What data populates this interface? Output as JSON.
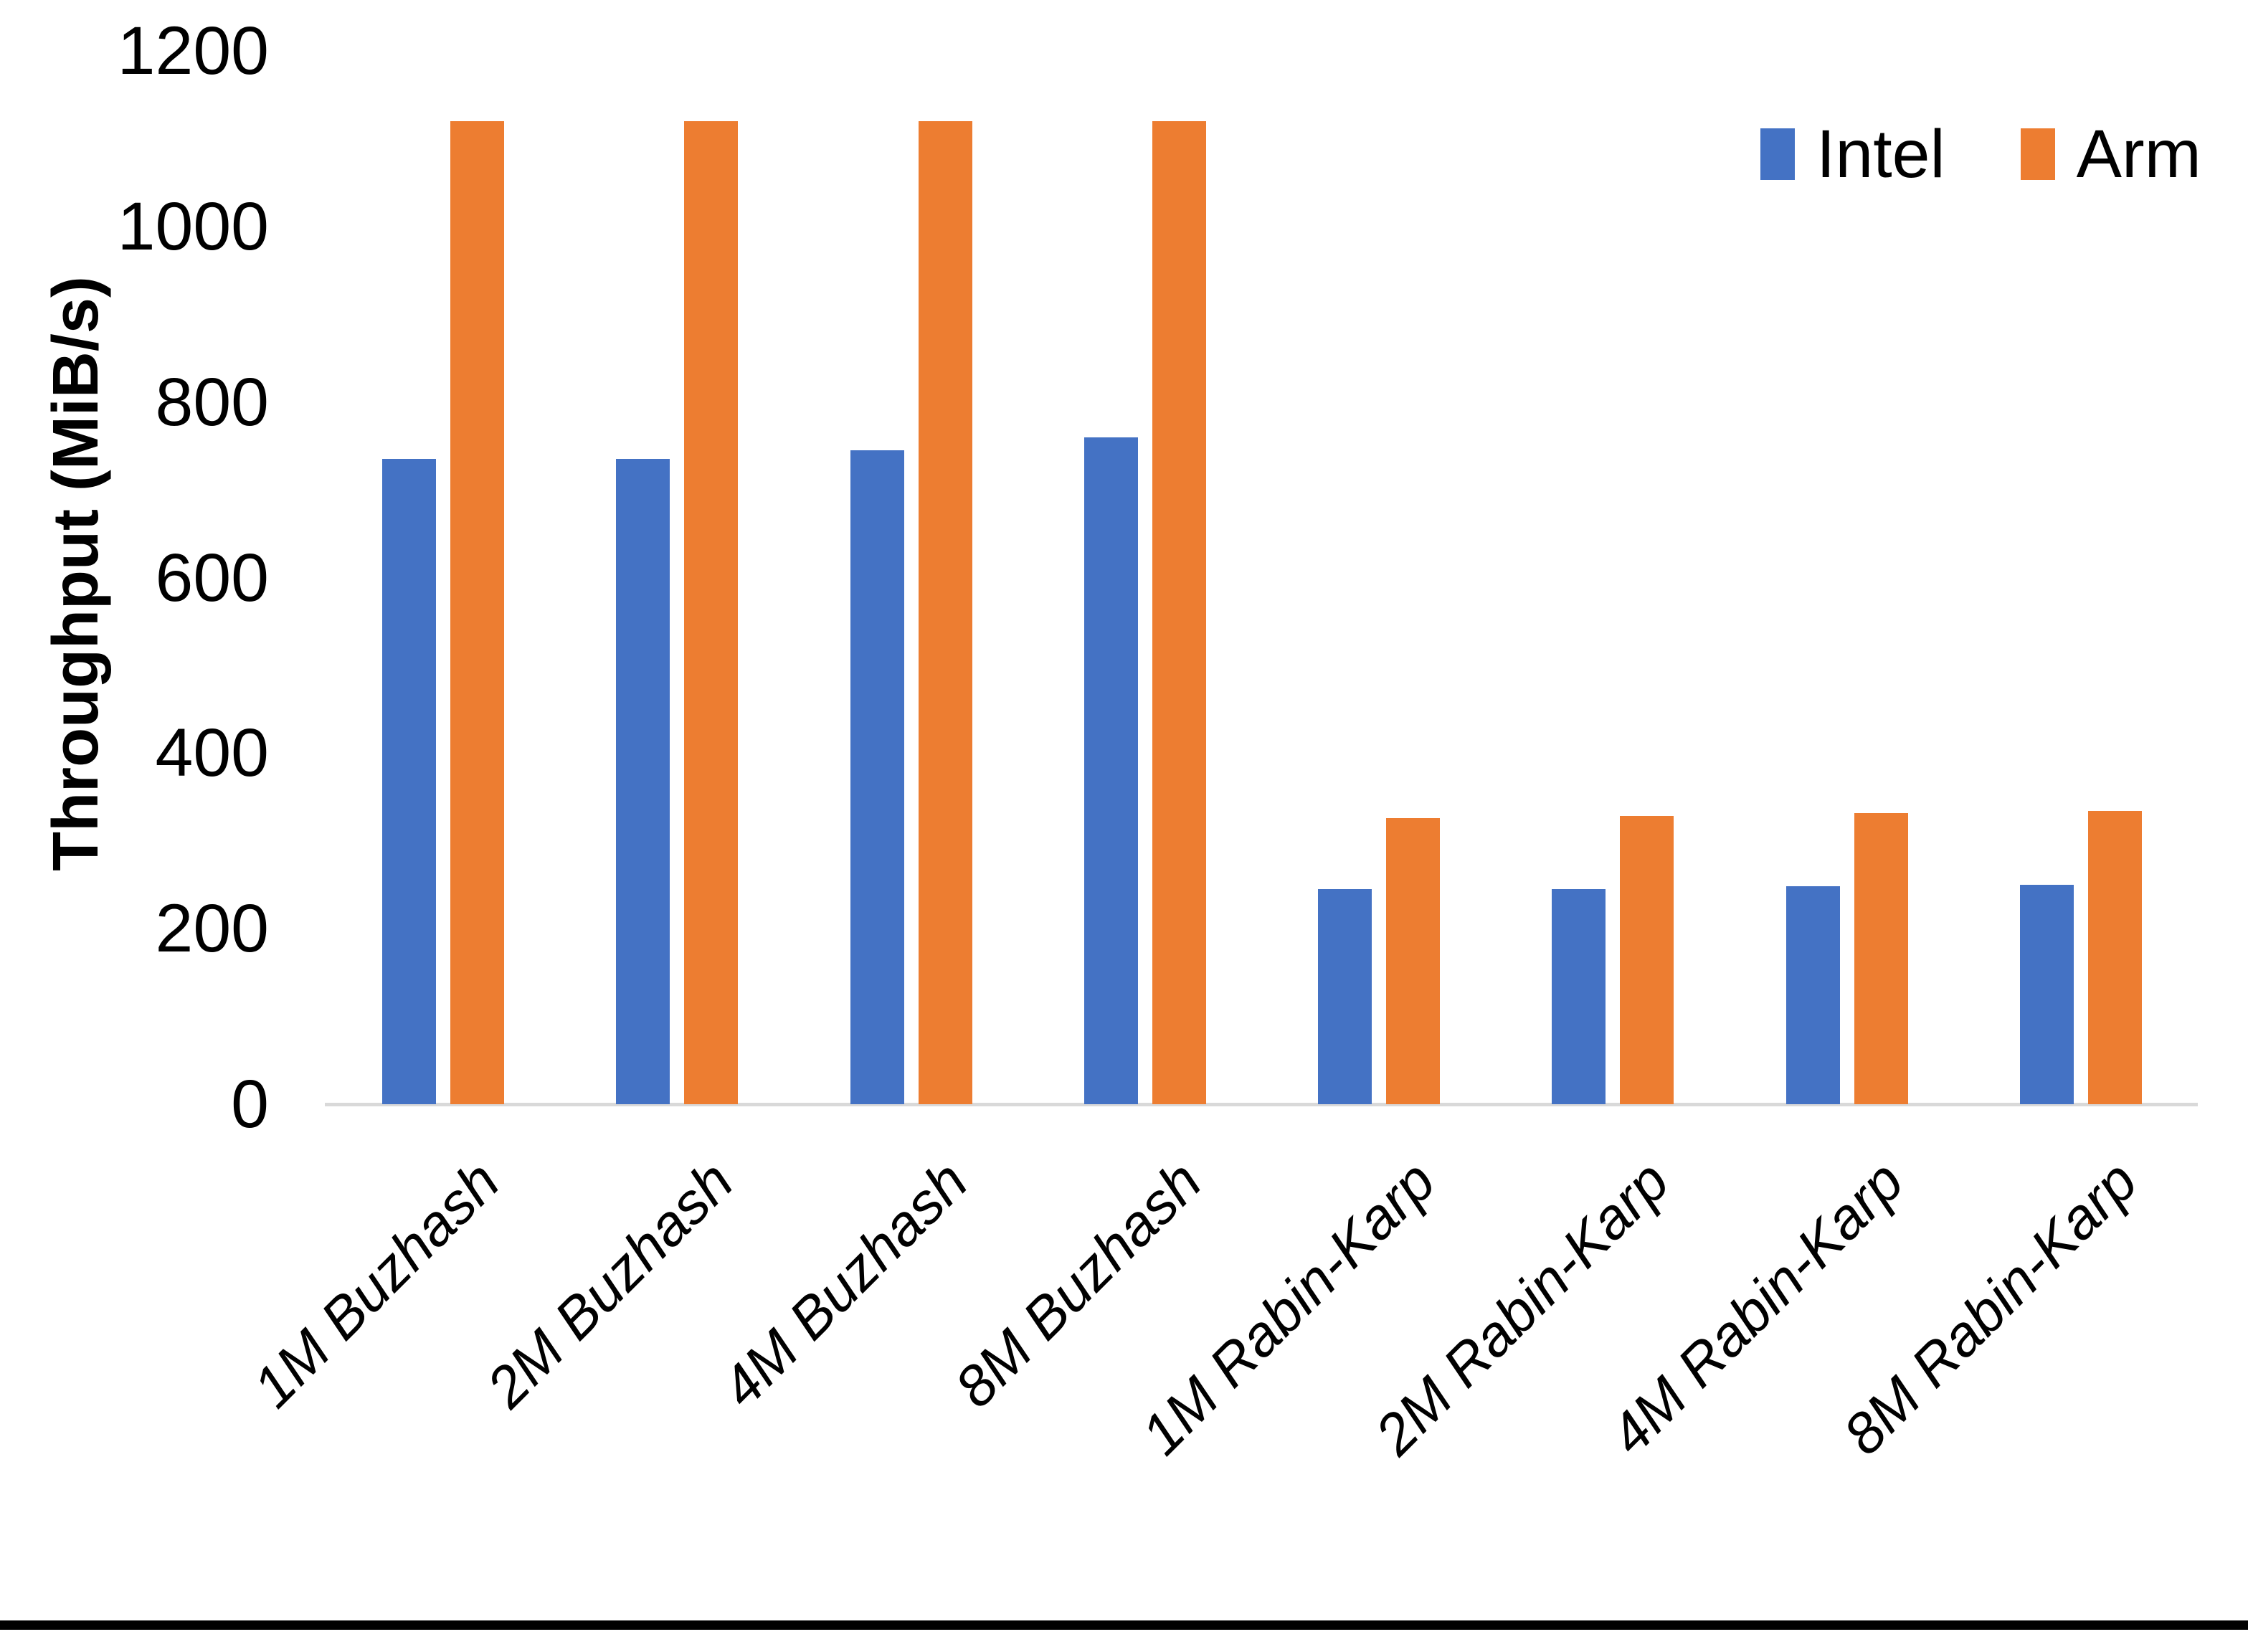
{
  "y_axis": {
    "title": "Throughput (MiB/s)",
    "tick_values": [
      0,
      200,
      400,
      600,
      800,
      1000,
      1200
    ]
  },
  "legend": {
    "items": [
      {
        "label": "Intel",
        "color": "#4472C4"
      },
      {
        "label": "Arm",
        "color": "#ED7D31"
      }
    ]
  },
  "colors": {
    "intel": "#4472C4",
    "arm": "#ED7D31",
    "axis_line": "#D9D9D9",
    "text": "#000000",
    "border": "#000000"
  },
  "chart_data": {
    "type": "bar",
    "title": "",
    "xlabel": "",
    "ylabel": "Throughput (MiB/s)",
    "ylim": [
      0,
      1200
    ],
    "ytick_step": 200,
    "grid": false,
    "legend_position": "top-right",
    "categories": [
      "1M Buzhash",
      "2M Buzhash",
      "4M Buzhash",
      "8M Buzhash",
      "1M Rabin-Karp",
      "2M Rabin-Karp",
      "4M Rabin-Karp",
      "8M Rabin-Karp"
    ],
    "series": [
      {
        "name": "Intel",
        "color": "#4472C4",
        "values": [
          735,
          735,
          745,
          760,
          245,
          245,
          248,
          250
        ]
      },
      {
        "name": "Arm",
        "color": "#ED7D31",
        "values": [
          1120,
          1120,
          1120,
          1120,
          326,
          328,
          332,
          334
        ]
      }
    ]
  }
}
